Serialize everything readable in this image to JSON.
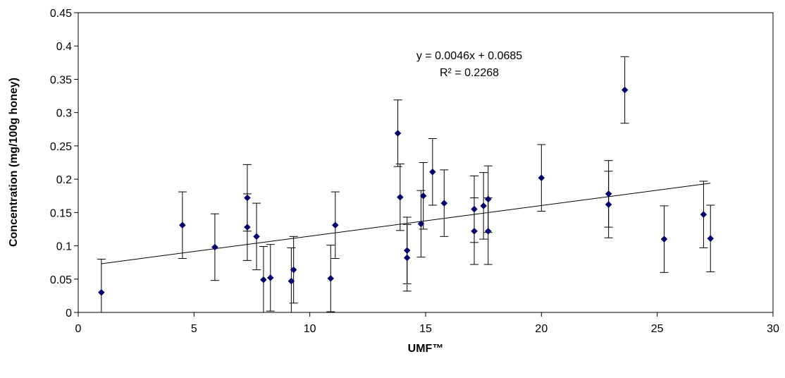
{
  "chart_data": {
    "type": "scatter",
    "title": "",
    "xlabel": "UMF™",
    "ylabel": "Concentration (mg/100g honey)",
    "xlim": [
      0,
      30
    ],
    "ylim": [
      0,
      0.45
    ],
    "xticks": [
      0,
      5,
      10,
      15,
      20,
      25,
      30
    ],
    "yticks": [
      0,
      0.05,
      0.1,
      0.15,
      0.2,
      0.25,
      0.3,
      0.35,
      0.4,
      0.45
    ],
    "xtick_labels": [
      "0",
      "5",
      "10",
      "15",
      "20",
      "25",
      "30"
    ],
    "ytick_labels": [
      "0",
      "0.05",
      "0.1",
      "0.15",
      "0.2",
      "0.25",
      "0.3",
      "0.35",
      "0.4",
      "0.45"
    ],
    "grid": false,
    "legend": "none",
    "marker_color": "#000066",
    "error_bar": 0.05,
    "points": [
      {
        "x": 1.0,
        "y": 0.03
      },
      {
        "x": 4.5,
        "y": 0.131
      },
      {
        "x": 5.9,
        "y": 0.098
      },
      {
        "x": 7.3,
        "y": 0.172
      },
      {
        "x": 7.3,
        "y": 0.128
      },
      {
        "x": 7.7,
        "y": 0.114
      },
      {
        "x": 8.0,
        "y": 0.049
      },
      {
        "x": 8.3,
        "y": 0.052
      },
      {
        "x": 9.2,
        "y": 0.047
      },
      {
        "x": 9.3,
        "y": 0.064
      },
      {
        "x": 10.9,
        "y": 0.051
      },
      {
        "x": 11.1,
        "y": 0.131
      },
      {
        "x": 13.8,
        "y": 0.269
      },
      {
        "x": 13.9,
        "y": 0.173
      },
      {
        "x": 14.2,
        "y": 0.093
      },
      {
        "x": 14.2,
        "y": 0.082
      },
      {
        "x": 14.8,
        "y": 0.133
      },
      {
        "x": 14.9,
        "y": 0.175
      },
      {
        "x": 15.3,
        "y": 0.211
      },
      {
        "x": 15.8,
        "y": 0.164
      },
      {
        "x": 17.1,
        "y": 0.155
      },
      {
        "x": 17.1,
        "y": 0.122
      },
      {
        "x": 17.5,
        "y": 0.16
      },
      {
        "x": 17.7,
        "y": 0.17
      },
      {
        "x": 17.7,
        "y": 0.122
      },
      {
        "x": 20.0,
        "y": 0.202
      },
      {
        "x": 22.9,
        "y": 0.178
      },
      {
        "x": 22.9,
        "y": 0.162
      },
      {
        "x": 23.6,
        "y": 0.334
      },
      {
        "x": 25.3,
        "y": 0.11
      },
      {
        "x": 27.0,
        "y": 0.147
      },
      {
        "x": 27.3,
        "y": 0.111
      }
    ],
    "trendline": {
      "type": "linear",
      "slope": 0.0046,
      "intercept": 0.0685,
      "x_range": [
        1.0,
        27.3
      ],
      "equation": "y = 0.0046x + 0.0685",
      "r_squared": "R² = 0.2268"
    }
  }
}
